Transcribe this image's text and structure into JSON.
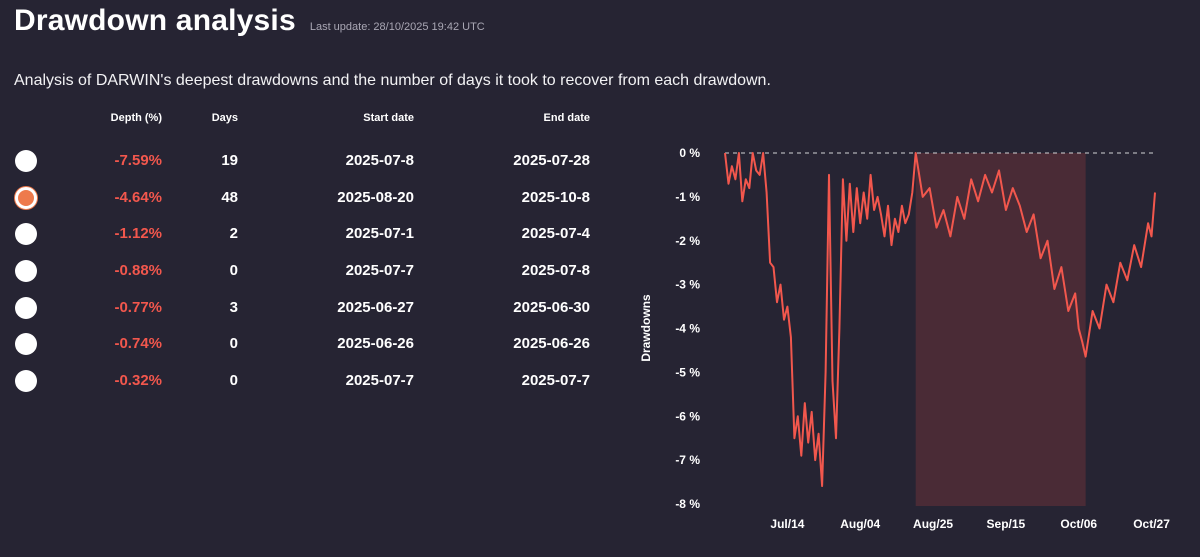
{
  "header": {
    "title": "Drawdown analysis",
    "last_update": "Last update: 28/10/2025 19:42 UTC"
  },
  "subtitle": "Analysis of DARWIN's deepest drawdowns and the number of days it took to recover from each drawdown.",
  "table": {
    "columns": [
      "Depth (%)",
      "Days",
      "Start date",
      "End date"
    ],
    "rows": [
      {
        "depth": "-7.59%",
        "days": "19",
        "start": "2025-07-8",
        "end": "2025-07-28",
        "selected": false
      },
      {
        "depth": "-4.64%",
        "days": "48",
        "start": "2025-08-20",
        "end": "2025-10-8",
        "selected": true
      },
      {
        "depth": "-1.12%",
        "days": "2",
        "start": "2025-07-1",
        "end": "2025-07-4",
        "selected": false
      },
      {
        "depth": "-0.88%",
        "days": "0",
        "start": "2025-07-7",
        "end": "2025-07-8",
        "selected": false
      },
      {
        "depth": "-0.77%",
        "days": "3",
        "start": "2025-06-27",
        "end": "2025-06-30",
        "selected": false
      },
      {
        "depth": "-0.74%",
        "days": "0",
        "start": "2025-06-26",
        "end": "2025-06-26",
        "selected": false
      },
      {
        "depth": "-0.32%",
        "days": "0",
        "start": "2025-07-7",
        "end": "2025-07-7",
        "selected": false
      }
    ]
  },
  "chart_data": {
    "type": "line",
    "ylabel": "Drawdowns",
    "ylim": [
      -8,
      0
    ],
    "yticks": [
      0,
      -1,
      -2,
      -3,
      -4,
      -5,
      -6,
      -7,
      -8
    ],
    "ytick_labels": [
      "0 %",
      "-1 %",
      "-2 %",
      "-3 %",
      "-4 %",
      "-5 %",
      "-6 %",
      "-7 %",
      "-8 %"
    ],
    "xlim": [
      "2025-06-26",
      "2025-10-28"
    ],
    "xticks": [
      "2025-07-14",
      "2025-08-04",
      "2025-08-25",
      "2025-09-15",
      "2025-10-06",
      "2025-10-27"
    ],
    "xtick_labels": [
      "Jul/14",
      "Aug/04",
      "Aug/25",
      "Sep/15",
      "Oct/06",
      "Oct/27"
    ],
    "highlight": {
      "start": "2025-08-20",
      "end": "2025-10-08"
    },
    "line_color": "#f2574d",
    "highlight_color": "#4a2b36",
    "series": [
      {
        "points": [
          [
            "2025-06-26",
            0.0
          ],
          [
            "2025-06-27",
            -0.7
          ],
          [
            "2025-06-28",
            -0.3
          ],
          [
            "2025-06-29",
            -0.6
          ],
          [
            "2025-06-30",
            0.0
          ],
          [
            "2025-07-01",
            -1.1
          ],
          [
            "2025-07-02",
            -0.6
          ],
          [
            "2025-07-03",
            -0.8
          ],
          [
            "2025-07-04",
            0.0
          ],
          [
            "2025-07-05",
            -0.4
          ],
          [
            "2025-07-06",
            -0.5
          ],
          [
            "2025-07-07",
            0.0
          ],
          [
            "2025-07-08",
            -0.9
          ],
          [
            "2025-07-09",
            -2.5
          ],
          [
            "2025-07-10",
            -2.6
          ],
          [
            "2025-07-11",
            -3.4
          ],
          [
            "2025-07-12",
            -3.0
          ],
          [
            "2025-07-13",
            -3.8
          ],
          [
            "2025-07-14",
            -3.5
          ],
          [
            "2025-07-15",
            -4.2
          ],
          [
            "2025-07-16",
            -6.5
          ],
          [
            "2025-07-17",
            -6.0
          ],
          [
            "2025-07-18",
            -6.9
          ],
          [
            "2025-07-19",
            -5.7
          ],
          [
            "2025-07-20",
            -6.6
          ],
          [
            "2025-07-21",
            -5.9
          ],
          [
            "2025-07-22",
            -7.0
          ],
          [
            "2025-07-23",
            -6.4
          ],
          [
            "2025-07-24",
            -7.59
          ],
          [
            "2025-07-25",
            -5.0
          ],
          [
            "2025-07-26",
            -0.5
          ],
          [
            "2025-07-27",
            -5.2
          ],
          [
            "2025-07-28",
            -6.5
          ],
          [
            "2025-07-29",
            -4.0
          ],
          [
            "2025-07-30",
            -0.6
          ],
          [
            "2025-07-31",
            -2.0
          ],
          [
            "2025-08-01",
            -0.7
          ],
          [
            "2025-08-02",
            -1.8
          ],
          [
            "2025-08-03",
            -0.8
          ],
          [
            "2025-08-04",
            -1.6
          ],
          [
            "2025-08-05",
            -0.9
          ],
          [
            "2025-08-06",
            -1.5
          ],
          [
            "2025-08-07",
            -0.5
          ],
          [
            "2025-08-08",
            -1.3
          ],
          [
            "2025-08-09",
            -1.0
          ],
          [
            "2025-08-10",
            -1.4
          ],
          [
            "2025-08-11",
            -1.9
          ],
          [
            "2025-08-12",
            -1.2
          ],
          [
            "2025-08-13",
            -2.1
          ],
          [
            "2025-08-14",
            -1.5
          ],
          [
            "2025-08-15",
            -1.8
          ],
          [
            "2025-08-16",
            -1.2
          ],
          [
            "2025-08-17",
            -1.6
          ],
          [
            "2025-08-18",
            -1.4
          ],
          [
            "2025-08-19",
            -0.9
          ],
          [
            "2025-08-20",
            0.0
          ],
          [
            "2025-08-22",
            -1.0
          ],
          [
            "2025-08-24",
            -0.8
          ],
          [
            "2025-08-26",
            -1.7
          ],
          [
            "2025-08-28",
            -1.3
          ],
          [
            "2025-08-30",
            -1.9
          ],
          [
            "2025-09-01",
            -1.0
          ],
          [
            "2025-09-03",
            -1.5
          ],
          [
            "2025-09-05",
            -0.6
          ],
          [
            "2025-09-07",
            -1.1
          ],
          [
            "2025-09-09",
            -0.5
          ],
          [
            "2025-09-11",
            -0.9
          ],
          [
            "2025-09-13",
            -0.4
          ],
          [
            "2025-09-15",
            -1.3
          ],
          [
            "2025-09-17",
            -0.8
          ],
          [
            "2025-09-19",
            -1.2
          ],
          [
            "2025-09-21",
            -1.8
          ],
          [
            "2025-09-23",
            -1.4
          ],
          [
            "2025-09-25",
            -2.4
          ],
          [
            "2025-09-27",
            -2.0
          ],
          [
            "2025-09-29",
            -3.1
          ],
          [
            "2025-10-01",
            -2.6
          ],
          [
            "2025-10-03",
            -3.6
          ],
          [
            "2025-10-05",
            -3.2
          ],
          [
            "2025-10-06",
            -4.0
          ],
          [
            "2025-10-07",
            -4.3
          ],
          [
            "2025-10-08",
            -4.64
          ],
          [
            "2025-10-10",
            -3.6
          ],
          [
            "2025-10-12",
            -4.0
          ],
          [
            "2025-10-14",
            -3.0
          ],
          [
            "2025-10-16",
            -3.4
          ],
          [
            "2025-10-18",
            -2.5
          ],
          [
            "2025-10-20",
            -2.9
          ],
          [
            "2025-10-22",
            -2.1
          ],
          [
            "2025-10-24",
            -2.6
          ],
          [
            "2025-10-26",
            -1.6
          ],
          [
            "2025-10-27",
            -1.9
          ],
          [
            "2025-10-28",
            -0.9
          ]
        ]
      }
    ]
  }
}
